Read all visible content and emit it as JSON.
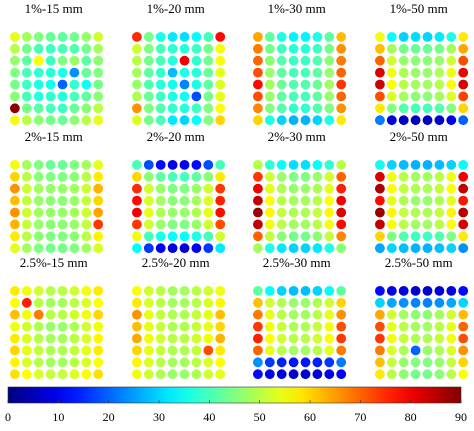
{
  "chart_data": {
    "type": "heatmap",
    "colormap": "jet",
    "colorbar": {
      "min": 0,
      "max": 90,
      "ticks": [
        0,
        10,
        20,
        30,
        40,
        50,
        60,
        70,
        80,
        90
      ],
      "orientation": "horizontal",
      "placement": "bottom"
    },
    "grid": {
      "rows": 8,
      "cols": 8
    },
    "panels": [
      {
        "title": "1%-15 mm",
        "values": [
          [
            54,
            48,
            45,
            43,
            42,
            44,
            47,
            52
          ],
          [
            50,
            44,
            40,
            39,
            40,
            41,
            44,
            48
          ],
          [
            47,
            42,
            56,
            39,
            45,
            47,
            42,
            46
          ],
          [
            45,
            40,
            38,
            37,
            36,
            24,
            43,
            45
          ],
          [
            44,
            39,
            36,
            35,
            20,
            38,
            35,
            44
          ],
          [
            46,
            40,
            37,
            38,
            37,
            40,
            42,
            46
          ],
          [
            89,
            44,
            42,
            40,
            39,
            43,
            46,
            50
          ],
          [
            55,
            50,
            46,
            44,
            43,
            46,
            50,
            54
          ]
        ]
      },
      {
        "title": "1%-20 mm",
        "values": [
          [
            75,
            44,
            36,
            32,
            31,
            34,
            40,
            78
          ],
          [
            52,
            45,
            40,
            38,
            37,
            39,
            44,
            55
          ],
          [
            50,
            44,
            40,
            37,
            80,
            38,
            44,
            56
          ],
          [
            48,
            42,
            38,
            28,
            36,
            37,
            43,
            54
          ],
          [
            47,
            41,
            37,
            35,
            23,
            36,
            42,
            53
          ],
          [
            49,
            43,
            39,
            36,
            35,
            18,
            44,
            54
          ],
          [
            66,
            45,
            41,
            38,
            37,
            39,
            45,
            56
          ],
          [
            53,
            44,
            40,
            32,
            30,
            34,
            45,
            60
          ]
        ]
      },
      {
        "title": "1%-30 mm",
        "values": [
          [
            64,
            42,
            36,
            33,
            33,
            36,
            42,
            62
          ],
          [
            68,
            44,
            39,
            37,
            37,
            39,
            44,
            66
          ],
          [
            70,
            46,
            41,
            39,
            39,
            41,
            46,
            68
          ],
          [
            72,
            47,
            42,
            40,
            40,
            42,
            47,
            70
          ],
          [
            78,
            48,
            43,
            41,
            41,
            43,
            48,
            74
          ],
          [
            72,
            47,
            42,
            40,
            40,
            42,
            47,
            70
          ],
          [
            67,
            45,
            41,
            38,
            38,
            41,
            45,
            66
          ],
          [
            60,
            36,
            30,
            27,
            27,
            30,
            36,
            58
          ]
        ]
      },
      {
        "title": "1%-50 mm",
        "values": [
          [
            55,
            34,
            30,
            31,
            30,
            32,
            36,
            58
          ],
          [
            62,
            48,
            44,
            43,
            43,
            44,
            48,
            64
          ],
          [
            70,
            52,
            47,
            46,
            46,
            47,
            52,
            72
          ],
          [
            82,
            55,
            49,
            47,
            47,
            49,
            55,
            80
          ],
          [
            83,
            56,
            50,
            48,
            48,
            50,
            56,
            82
          ],
          [
            72,
            53,
            48,
            46,
            46,
            48,
            53,
            73
          ],
          [
            58,
            45,
            41,
            40,
            40,
            41,
            45,
            60
          ],
          [
            22,
            8,
            6,
            5,
            6,
            7,
            10,
            20
          ]
        ]
      },
      {
        "title": "2%-15 mm",
        "values": [
          [
            55,
            48,
            45,
            43,
            43,
            45,
            48,
            54
          ],
          [
            60,
            50,
            46,
            45,
            45,
            46,
            50,
            58
          ],
          [
            66,
            52,
            48,
            47,
            47,
            48,
            52,
            63
          ],
          [
            62,
            51,
            47,
            46,
            46,
            47,
            51,
            60
          ],
          [
            66,
            52,
            48,
            47,
            47,
            48,
            52,
            64
          ],
          [
            63,
            51,
            47,
            46,
            46,
            47,
            51,
            74
          ],
          [
            58,
            50,
            46,
            45,
            45,
            46,
            50,
            57
          ],
          [
            54,
            48,
            45,
            44,
            44,
            45,
            48,
            53
          ]
        ]
      },
      {
        "title": "2%-20 mm",
        "values": [
          [
            40,
            18,
            12,
            10,
            10,
            12,
            18,
            40
          ],
          [
            60,
            46,
            42,
            40,
            40,
            42,
            46,
            58
          ],
          [
            75,
            52,
            47,
            45,
            45,
            47,
            52,
            74
          ],
          [
            78,
            53,
            48,
            46,
            46,
            48,
            53,
            76
          ],
          [
            80,
            54,
            49,
            47,
            47,
            49,
            54,
            78
          ],
          [
            74,
            52,
            47,
            45,
            45,
            47,
            52,
            72
          ],
          [
            55,
            40,
            36,
            34,
            34,
            36,
            40,
            52
          ],
          [
            34,
            16,
            10,
            8,
            8,
            10,
            16,
            32
          ]
        ]
      },
      {
        "title": "2%-30 mm",
        "values": [
          [
            50,
            38,
            34,
            31,
            31,
            34,
            38,
            50
          ],
          [
            74,
            52,
            47,
            45,
            45,
            47,
            52,
            70
          ],
          [
            80,
            54,
            49,
            47,
            47,
            49,
            54,
            76
          ],
          [
            84,
            56,
            50,
            48,
            48,
            50,
            56,
            80
          ],
          [
            88,
            57,
            51,
            49,
            49,
            51,
            57,
            82
          ],
          [
            84,
            55,
            50,
            48,
            48,
            50,
            55,
            78
          ],
          [
            70,
            51,
            46,
            44,
            44,
            46,
            51,
            67
          ],
          [
            48,
            36,
            32,
            30,
            30,
            32,
            36,
            46
          ]
        ]
      },
      {
        "title": "2%-50 mm",
        "values": [
          [
            35,
            30,
            28,
            27,
            27,
            28,
            30,
            34
          ],
          [
            82,
            55,
            50,
            48,
            48,
            50,
            55,
            80
          ],
          [
            86,
            56,
            51,
            49,
            49,
            51,
            56,
            84
          ],
          [
            78,
            54,
            49,
            47,
            47,
            49,
            54,
            77
          ],
          [
            88,
            57,
            51,
            49,
            49,
            51,
            57,
            85
          ],
          [
            84,
            56,
            50,
            48,
            48,
            50,
            56,
            82
          ],
          [
            60,
            45,
            41,
            39,
            39,
            41,
            45,
            58
          ],
          [
            26,
            30,
            28,
            27,
            27,
            28,
            30,
            24
          ]
        ]
      },
      {
        "title": "2.5%-15 mm",
        "values": [
          [
            58,
            55,
            52,
            50,
            50,
            52,
            55,
            58
          ],
          [
            56,
            76,
            50,
            48,
            48,
            50,
            53,
            56
          ],
          [
            62,
            55,
            68,
            50,
            50,
            52,
            55,
            60
          ],
          [
            55,
            52,
            49,
            47,
            47,
            49,
            52,
            55
          ],
          [
            58,
            53,
            50,
            48,
            48,
            50,
            53,
            57
          ],
          [
            60,
            54,
            51,
            49,
            49,
            51,
            54,
            58
          ],
          [
            57,
            53,
            50,
            48,
            48,
            50,
            53,
            56
          ],
          [
            59,
            56,
            53,
            51,
            51,
            53,
            56,
            59
          ]
        ]
      },
      {
        "title": "2.5%-20 mm",
        "values": [
          [
            56,
            52,
            50,
            48,
            48,
            50,
            52,
            55
          ],
          [
            58,
            53,
            50,
            48,
            48,
            50,
            53,
            57
          ],
          [
            66,
            54,
            51,
            49,
            49,
            51,
            54,
            62
          ],
          [
            62,
            54,
            51,
            49,
            49,
            51,
            54,
            60
          ],
          [
            64,
            55,
            52,
            50,
            50,
            52,
            55,
            63
          ],
          [
            60,
            54,
            51,
            49,
            49,
            51,
            72,
            58
          ],
          [
            57,
            53,
            50,
            48,
            48,
            50,
            53,
            56
          ],
          [
            55,
            52,
            49,
            47,
            47,
            49,
            52,
            54
          ]
        ]
      },
      {
        "title": "2.5%-30 mm",
        "values": [
          [
            42,
            34,
            30,
            28,
            28,
            30,
            34,
            42
          ],
          [
            62,
            52,
            49,
            47,
            47,
            49,
            52,
            60
          ],
          [
            68,
            54,
            50,
            48,
            48,
            50,
            54,
            66
          ],
          [
            74,
            55,
            51,
            49,
            49,
            51,
            55,
            72
          ],
          [
            76,
            56,
            52,
            50,
            50,
            52,
            56,
            74
          ],
          [
            70,
            54,
            50,
            48,
            48,
            50,
            54,
            68
          ],
          [
            24,
            16,
            14,
            13,
            13,
            14,
            16,
            22
          ],
          [
            12,
            9,
            8,
            7,
            7,
            8,
            9,
            11
          ]
        ]
      },
      {
        "title": "2.5%-50 mm",
        "values": [
          [
            12,
            9,
            8,
            7,
            7,
            8,
            9,
            12
          ],
          [
            30,
            26,
            24,
            23,
            23,
            24,
            26,
            30
          ],
          [
            64,
            52,
            48,
            46,
            46,
            48,
            52,
            62
          ],
          [
            72,
            54,
            50,
            48,
            48,
            50,
            54,
            70
          ],
          [
            74,
            55,
            51,
            49,
            49,
            51,
            55,
            72
          ],
          [
            68,
            53,
            49,
            20,
            47,
            49,
            53,
            66
          ],
          [
            62,
            51,
            47,
            45,
            45,
            47,
            51,
            60
          ],
          [
            58,
            50,
            46,
            44,
            44,
            46,
            50,
            56
          ]
        ]
      }
    ]
  }
}
